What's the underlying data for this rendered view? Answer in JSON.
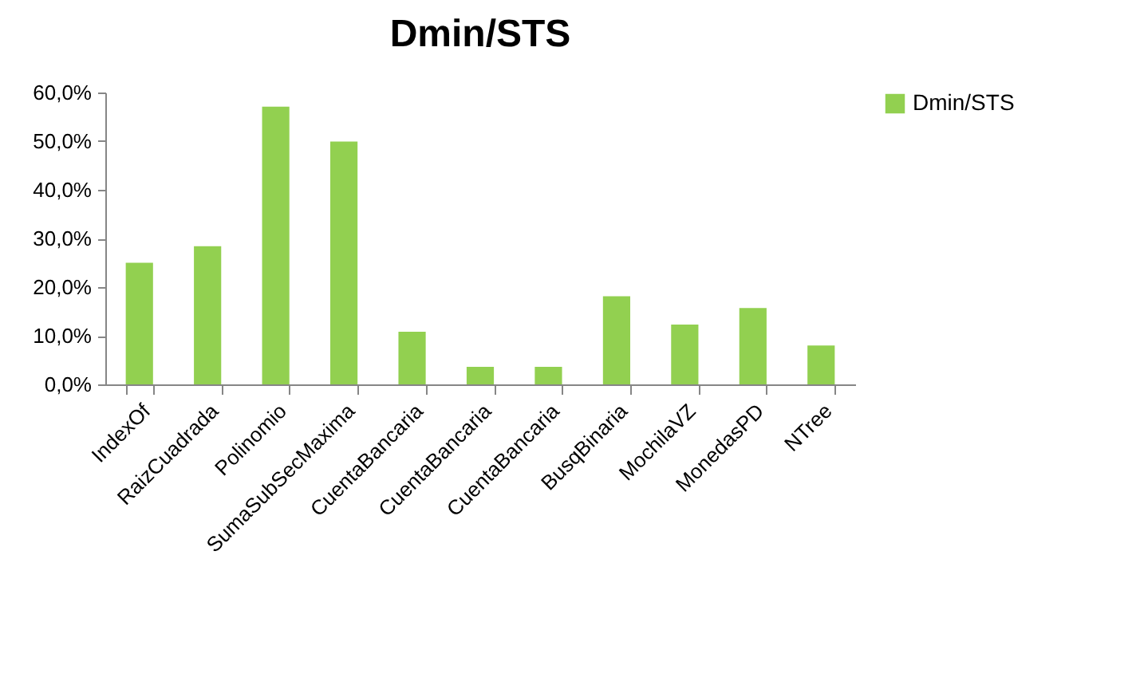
{
  "chart_data": {
    "type": "bar",
    "title": "Dmin/STS",
    "categories": [
      "IndexOf",
      "RaizCuadrada",
      "Polinomio",
      "SumaSubSecMaxima",
      "CuentaBancaria",
      "CuentaBancaria",
      "CuentaBancaria",
      "BusqBinaria",
      "MochilaVZ",
      "MonedasPD",
      "NTree"
    ],
    "series": [
      {
        "name": "Dmin/STS",
        "color": "#92d050",
        "values": [
          25,
          28.4,
          57.1,
          49.9,
          10.8,
          3.6,
          3.6,
          18.1,
          12.3,
          15.7,
          8.0
        ]
      }
    ],
    "ylim": [
      0,
      60
    ],
    "yticks": [
      {
        "value": 0,
        "label": "0,0%"
      },
      {
        "value": 10,
        "label": "10,0%"
      },
      {
        "value": 20,
        "label": "20,0%"
      },
      {
        "value": 30,
        "label": "30,0%"
      },
      {
        "value": 40,
        "label": "40,0%"
      },
      {
        "value": 50,
        "label": "50,0%"
      },
      {
        "value": 60,
        "label": "60,0%"
      }
    ],
    "grid": false,
    "legend": "right"
  }
}
